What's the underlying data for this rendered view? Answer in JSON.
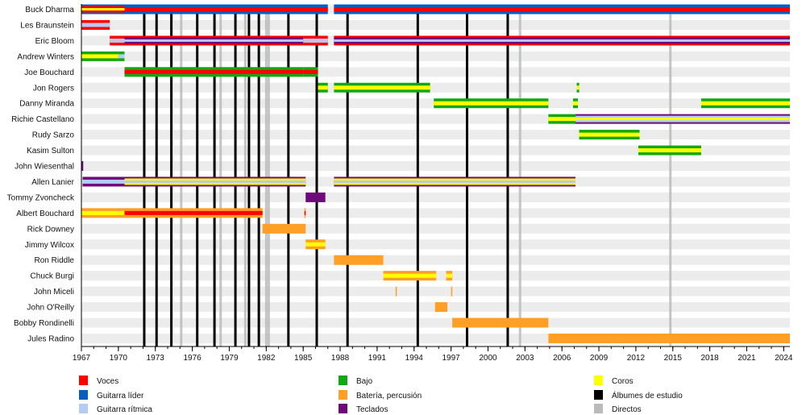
{
  "chart_data": {
    "type": "timeline",
    "title": "",
    "xlabel": "",
    "ylabel": "",
    "xlim": [
      1967,
      2024.5
    ],
    "x_ticks": [
      1967,
      1970,
      1973,
      1976,
      1979,
      1982,
      1985,
      1988,
      1991,
      1994,
      1997,
      2000,
      2003,
      2006,
      2009,
      2012,
      2015,
      2018,
      2021,
      2024
    ],
    "minor_tick_step": 1,
    "grid": "alternating row bands",
    "colors": {
      "voces": "#ff0000",
      "guitarra_lider": "#0a5cbd",
      "guitarra_ritmica": "#b4ccf5",
      "bajo": "#12a812",
      "bateria": "#ff9f25",
      "teclados": "#6e0a7a",
      "coros": "#ffff00",
      "estudio": "#000000",
      "directos": "#bbbbbb"
    },
    "members": [
      {
        "name": "Buck Dharma",
        "bars": [
          {
            "start": 1967,
            "end": 1970.5,
            "roles": [
              "guitarra_lider",
              "voces",
              "coros"
            ]
          },
          {
            "start": 1970.5,
            "end": 1987,
            "roles": [
              "guitarra_lider",
              "voces"
            ]
          },
          {
            "start": 1987.5,
            "end": 2024.5,
            "roles": [
              "guitarra_lider",
              "voces"
            ]
          }
        ]
      },
      {
        "name": "Les Braunstein",
        "bars": [
          {
            "start": 1967,
            "end": 1969.3,
            "roles": [
              "voces",
              "guitarra_ritmica"
            ]
          }
        ]
      },
      {
        "name": "Eric Bloom",
        "bars": [
          {
            "start": 1969.3,
            "end": 1970.5,
            "roles": [
              "voces",
              "guitarra_ritmica"
            ]
          },
          {
            "start": 1970.5,
            "end": 1985,
            "roles": [
              "voces",
              "teclados",
              "guitarra_ritmica"
            ]
          },
          {
            "start": 1985,
            "end": 1987,
            "roles": [
              "voces",
              "guitarra_ritmica"
            ]
          },
          {
            "start": 1987.5,
            "end": 2024.5,
            "roles": [
              "voces",
              "teclados",
              "guitarra_ritmica"
            ]
          }
        ]
      },
      {
        "name": "Andrew Winters",
        "bars": [
          {
            "start": 1967,
            "end": 1970,
            "roles": [
              "bajo",
              "coros"
            ]
          },
          {
            "start": 1970,
            "end": 1970.5,
            "roles": [
              "bajo",
              "guitarra_ritmica"
            ]
          }
        ]
      },
      {
        "name": "Joe Bouchard",
        "bars": [
          {
            "start": 1970.5,
            "end": 1985,
            "roles": [
              "bajo",
              "voces"
            ]
          },
          {
            "start": 1985,
            "end": 1986.2,
            "roles": [
              "bajo",
              "voces"
            ]
          }
        ]
      },
      {
        "name": "Jon Rogers",
        "bars": [
          {
            "start": 1986.2,
            "end": 1987,
            "roles": [
              "bajo",
              "coros"
            ]
          },
          {
            "start": 1987.5,
            "end": 1995.3,
            "roles": [
              "bajo",
              "coros"
            ]
          },
          {
            "start": 2007.2,
            "end": 2007.4,
            "roles": [
              "bajo",
              "coros"
            ]
          }
        ]
      },
      {
        "name": "Danny Miranda",
        "bars": [
          {
            "start": 1995.6,
            "end": 2004.9,
            "roles": [
              "bajo",
              "coros"
            ]
          },
          {
            "start": 2006.9,
            "end": 2007.3,
            "roles": [
              "bajo",
              "coros"
            ]
          },
          {
            "start": 2017.3,
            "end": 2024.5,
            "roles": [
              "bajo",
              "coros"
            ]
          }
        ]
      },
      {
        "name": "Richie Castellano",
        "bars": [
          {
            "start": 2004.9,
            "end": 2007.1,
            "roles": [
              "bajo",
              "coros"
            ]
          },
          {
            "start": 2007.1,
            "end": 2024.5,
            "roles": [
              "teclados",
              "guitarra_ritmica",
              "coros"
            ]
          }
        ]
      },
      {
        "name": "Rudy Sarzo",
        "bars": [
          {
            "start": 2007.4,
            "end": 2012.3,
            "roles": [
              "bajo",
              "coros"
            ]
          }
        ]
      },
      {
        "name": "Kasim Sulton",
        "bars": [
          {
            "start": 2012.2,
            "end": 2017.3,
            "roles": [
              "bajo",
              "coros"
            ]
          }
        ]
      },
      {
        "name": "John Wiesenthal",
        "bars": [
          {
            "start": 1967,
            "end": 1967.15,
            "roles": [
              "teclados"
            ]
          }
        ]
      },
      {
        "name": "Allen Lanier",
        "bars": [
          {
            "start": 1967.1,
            "end": 1970.5,
            "roles": [
              "teclados",
              "guitarra_ritmica"
            ]
          },
          {
            "start": 1970.5,
            "end": 1985.2,
            "roles": [
              "teclados",
              "coros",
              "guitarra_ritmica"
            ]
          },
          {
            "start": 1987.5,
            "end": 2007.1,
            "roles": [
              "teclados",
              "coros",
              "guitarra_ritmica"
            ]
          }
        ]
      },
      {
        "name": "Tommy Zvoncheck",
        "bars": [
          {
            "start": 1985.2,
            "end": 1986.8,
            "roles": [
              "teclados"
            ]
          }
        ]
      },
      {
        "name": "Albert Bouchard",
        "bars": [
          {
            "start": 1967,
            "end": 1970.5,
            "roles": [
              "bateria",
              "coros"
            ]
          },
          {
            "start": 1970.5,
            "end": 1981.7,
            "roles": [
              "bateria",
              "voces"
            ]
          },
          {
            "start": 1985.1,
            "end": 1985.2,
            "roles": [
              "bateria",
              "voces"
            ]
          }
        ]
      },
      {
        "name": "Rick Downey",
        "bars": [
          {
            "start": 1981.7,
            "end": 1985.2,
            "roles": [
              "bateria"
            ]
          }
        ]
      },
      {
        "name": "Jimmy Wilcox",
        "bars": [
          {
            "start": 1985.2,
            "end": 1986.8,
            "roles": [
              "bateria",
              "coros"
            ]
          }
        ]
      },
      {
        "name": "Ron Riddle",
        "bars": [
          {
            "start": 1987.5,
            "end": 1991.5,
            "roles": [
              "bateria"
            ]
          }
        ]
      },
      {
        "name": "Chuck Burgi",
        "bars": [
          {
            "start": 1991.5,
            "end": 1995.8,
            "roles": [
              "bateria",
              "coros"
            ]
          },
          {
            "start": 1996.6,
            "end": 1997.1,
            "roles": [
              "bateria",
              "coros"
            ]
          }
        ]
      },
      {
        "name": "John Miceli",
        "bars": [
          {
            "start": 1992.5,
            "end": 1992.6,
            "roles": [
              "bateria"
            ]
          },
          {
            "start": 1997.0,
            "end": 1997.1,
            "roles": [
              "bateria"
            ]
          }
        ]
      },
      {
        "name": "John O'Reilly",
        "bars": [
          {
            "start": 1995.7,
            "end": 1996.7,
            "roles": [
              "bateria"
            ]
          }
        ]
      },
      {
        "name": "Bobby Rondinelli",
        "bars": [
          {
            "start": 1997.1,
            "end": 2004.9,
            "roles": [
              "bateria"
            ]
          }
        ]
      },
      {
        "name": "Jules Radino",
        "bars": [
          {
            "start": 2004.9,
            "end": 2024.5,
            "roles": [
              "bateria"
            ]
          }
        ]
      }
    ],
    "studio_albums": [
      1972.1,
      1973.1,
      1974.3,
      1976.4,
      1977.8,
      1979.5,
      1980.6,
      1981.4,
      1983.8,
      1986.1,
      1988.6,
      1994.3,
      1998.3,
      2001.6
    ],
    "live_albums": [
      1975.1,
      1978.3,
      1980.3,
      1982.0,
      1982.2,
      2002.6,
      2014.8
    ],
    "legend": {
      "placement": "bottom",
      "columns": [
        [
          {
            "key": "voces",
            "label": "Voces"
          },
          {
            "key": "guitarra_lider",
            "label": "Guitarra líder"
          },
          {
            "key": "guitarra_ritmica",
            "label": "Guitarra rítmica"
          }
        ],
        [
          {
            "key": "bajo",
            "label": "Bajo"
          },
          {
            "key": "bateria",
            "label": "Batería, percusión"
          },
          {
            "key": "teclados",
            "label": "Teclados"
          }
        ],
        [
          {
            "key": "coros",
            "label": "Coros"
          },
          {
            "key": "estudio",
            "label": "Álbumes de estudio"
          },
          {
            "key": "directos",
            "label": "Directos"
          }
        ]
      ]
    }
  }
}
